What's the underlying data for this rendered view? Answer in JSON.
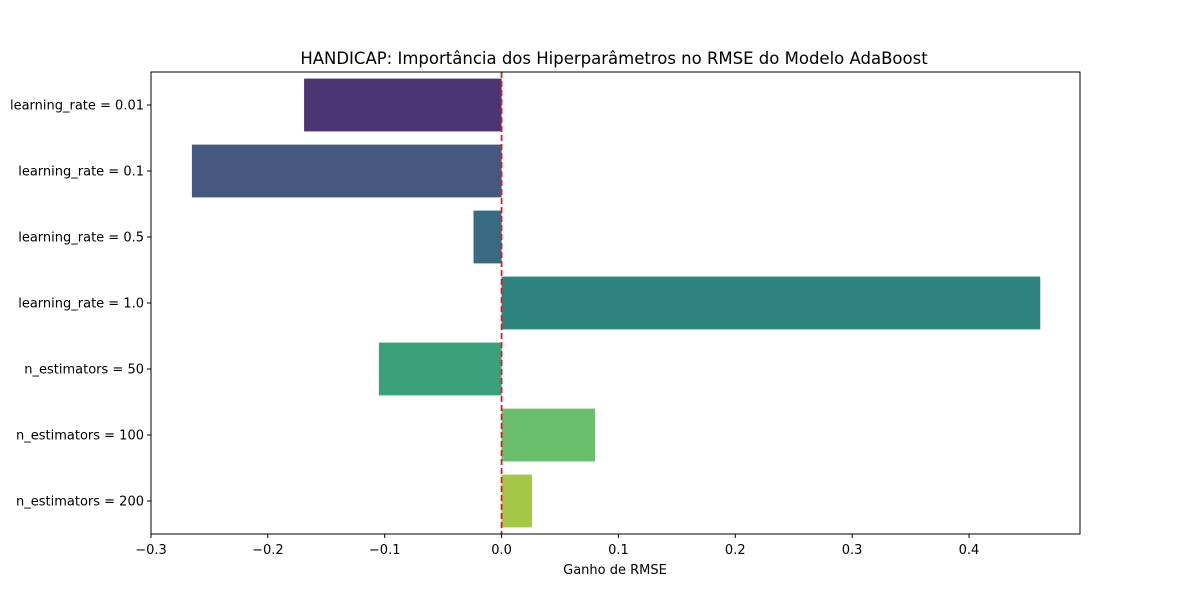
{
  "chart_data": {
    "type": "bar",
    "orientation": "horizontal",
    "title": "HANDICAP: Importância dos Hiperparâmetros no RMSE do Modelo AdaBoost",
    "xlabel": "Ganho de RMSE",
    "ylabel": "",
    "categories": [
      "learning_rate = 0.01",
      "learning_rate = 0.1",
      "learning_rate = 0.5",
      "learning_rate = 1.0",
      "n_estimators = 50",
      "n_estimators = 100",
      "n_estimators = 200"
    ],
    "values": [
      -0.169,
      -0.265,
      -0.024,
      0.461,
      -0.105,
      0.08,
      0.026
    ],
    "colors": [
      "#4b3472",
      "#45587f",
      "#376b82",
      "#2e857f",
      "#3aa17c",
      "#6bbe6b",
      "#a5c746"
    ],
    "xlim": [
      -0.3,
      0.495
    ],
    "xticks": [
      -0.3,
      -0.2,
      -0.1,
      0.0,
      0.1,
      0.2,
      0.3,
      0.4
    ],
    "xtick_labels": [
      "−0.3",
      "−0.2",
      "−0.1",
      "0.0",
      "0.1",
      "0.2",
      "0.3",
      "0.4"
    ],
    "reference_line": {
      "x": 0.0,
      "color": "#e31a1c",
      "style": "dashed"
    },
    "grid": false,
    "legend": "none"
  }
}
